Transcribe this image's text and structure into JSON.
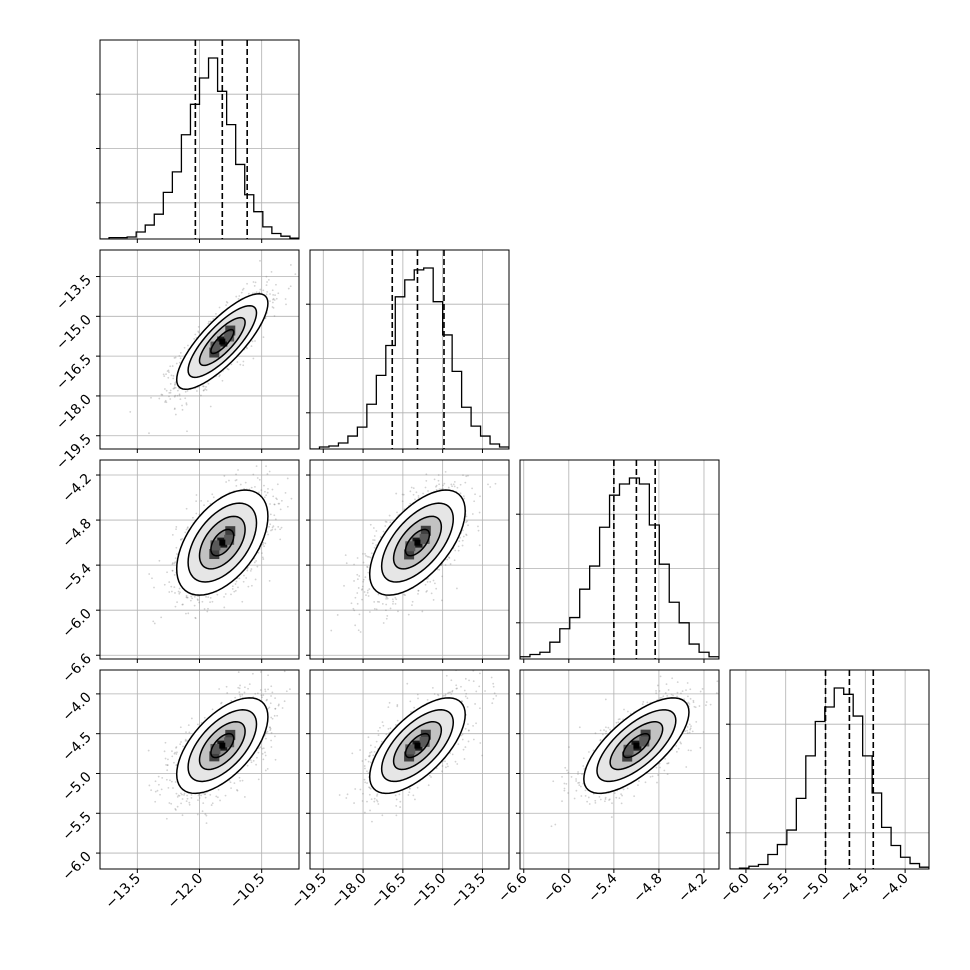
{
  "chart_data": {
    "type": "corner",
    "params": [
      {
        "name": "",
        "range": [
          -14.4,
          -9.6
        ],
        "ticks": [
          -13.5,
          -12.0,
          -10.5
        ],
        "tick_labels": [
          "−13.5",
          "−12.0",
          "−10.5"
        ],
        "quantiles": [
          -12.1,
          -11.45,
          -10.85
        ],
        "hist": [
          0,
          0.0075,
          0.0075,
          0.011,
          0.0385,
          0.077,
          0.137,
          0.2575,
          0.371,
          0.576,
          0.744,
          0.8895,
          1.0,
          0.816,
          0.632,
          0.412,
          0.2445,
          0.151,
          0.067,
          0.0305,
          0.0155,
          0.0045
        ]
      },
      {
        "name": "",
        "range": [
          -20.0,
          -12.5
        ],
        "ticks": [
          -19.5,
          -18.0,
          -16.5,
          -15.0,
          -13.5
        ],
        "tick_labels": [
          "−19.5",
          "−18.0",
          "−16.5",
          "−15.0",
          "−13.5"
        ],
        "quantiles": [
          -16.9,
          -15.95,
          -14.95
        ],
        "hist": [
          0,
          0.011,
          0.0165,
          0.033,
          0.0715,
          0.121,
          0.247,
          0.4065,
          0.5715,
          0.8405,
          0.934,
          0.989,
          0.9995,
          0.8135,
          0.63,
          0.4285,
          0.2305,
          0.1265,
          0.0715,
          0.0275,
          0.011
        ]
      },
      {
        "name": "",
        "range": [
          -6.65,
          -4.0
        ],
        "ticks": [
          -6.6,
          -6.0,
          -5.4,
          -4.8,
          -4.2
        ],
        "tick_labels": [
          "−6.6",
          "−6.0",
          "−5.4",
          "−4.8",
          "−4.2"
        ],
        "quantiles": [
          -5.4,
          -5.1,
          -4.85
        ],
        "hist": [
          0.012,
          0.024,
          0.036,
          0.09,
          0.162,
          0.222,
          0.374,
          0.498,
          0.706,
          0.878,
          0.938,
          0.97,
          0.938,
          0.718,
          0.508,
          0.304,
          0.194,
          0.08,
          0.036,
          0.012
        ]
      },
      {
        "name": "",
        "range": [
          -6.2,
          -3.7
        ],
        "ticks": [
          -6.0,
          -5.5,
          -5.0,
          -4.5,
          -4.0
        ],
        "tick_labels": [
          "−6.0",
          "−5.5",
          "−5.0",
          "−4.5",
          "−4.0"
        ],
        "quantiles": [
          -5.0,
          -4.7,
          -4.4
        ],
        "hist": [
          0,
          0.005,
          0.015,
          0.025,
          0.08,
          0.135,
          0.215,
          0.39,
          0.625,
          0.815,
          0.895,
          1.0,
          0.965,
          0.845,
          0.625,
          0.42,
          0.23,
          0.13,
          0.065,
          0.03,
          0.01
        ]
      }
    ],
    "pairs": [
      {
        "x": 0,
        "y": 1,
        "mean": [
          -11.45,
          -15.95
        ],
        "sd": [
          0.55,
          0.9
        ],
        "rho": 0.8
      },
      {
        "x": 0,
        "y": 2,
        "mean": [
          -11.45,
          -5.1
        ],
        "sd": [
          0.55,
          0.35
        ],
        "rho": 0.5
      },
      {
        "x": 1,
        "y": 2,
        "mean": [
          -15.95,
          -5.1
        ],
        "sd": [
          0.9,
          0.35
        ],
        "rho": 0.6
      },
      {
        "x": 0,
        "y": 3,
        "mean": [
          -11.45,
          -4.65
        ],
        "sd": [
          0.55,
          0.3
        ],
        "rho": 0.6
      },
      {
        "x": 1,
        "y": 3,
        "mean": [
          -15.95,
          -4.65
        ],
        "sd": [
          0.9,
          0.3
        ],
        "rho": 0.65
      },
      {
        "x": 2,
        "y": 3,
        "mean": [
          -5.1,
          -4.65
        ],
        "sd": [
          0.35,
          0.3
        ],
        "rho": 0.7
      }
    ],
    "contour_levels_sigma": [
      0.5,
      1.0,
      1.5,
      2.0
    ],
    "grid": true,
    "title": "",
    "colors": {
      "hist": "#000000",
      "contour": "#000000",
      "points": "#7f7f7f",
      "grid": "#b0b0b0"
    }
  }
}
